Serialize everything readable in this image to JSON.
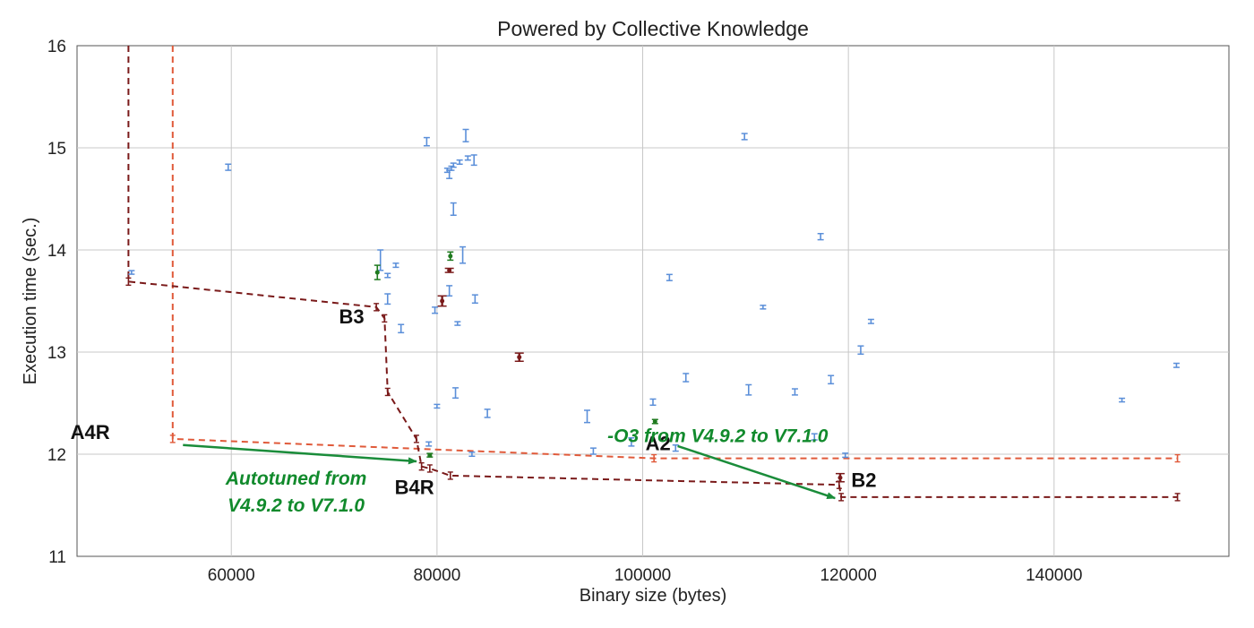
{
  "chart_data": {
    "type": "scatter",
    "title": "Powered by Collective Knowledge",
    "xlabel": "Binary size (bytes)",
    "ylabel": "Execution time (sec.)",
    "xlim": [
      45000,
      157000
    ],
    "ylim": [
      11,
      16
    ],
    "xticks": [
      60000,
      80000,
      100000,
      120000,
      140000
    ],
    "yticks": [
      11,
      12,
      13,
      14,
      15,
      16
    ],
    "grid": true,
    "colors": {
      "blue": "#5b8fd9",
      "darkred": "#7a1a1a",
      "green": "#1f7a1f",
      "orange": "#e05a3a",
      "arrow": "#1a8c3a",
      "note": "#118a2c"
    },
    "series": [
      {
        "role": "scatter-blue",
        "color": "#5b8fd9",
        "points": [
          [
            50300,
            13.78,
            0.01
          ],
          [
            59700,
            14.81,
            0.03
          ],
          [
            74500,
            13.9,
            0.1
          ],
          [
            75200,
            13.52,
            0.05
          ],
          [
            75200,
            13.75,
            0.02
          ],
          [
            76000,
            13.85,
            0.02
          ],
          [
            76500,
            13.23,
            0.04
          ],
          [
            79000,
            15.06,
            0.04
          ],
          [
            79200,
            12.1,
            0.02
          ],
          [
            79800,
            13.41,
            0.03
          ],
          [
            80000,
            12.47,
            0.01
          ],
          [
            81000,
            14.78,
            0.02
          ],
          [
            81200,
            14.74,
            0.04
          ],
          [
            81400,
            14.8,
            0.02
          ],
          [
            81600,
            14.83,
            0.02
          ],
          [
            81600,
            14.4,
            0.06
          ],
          [
            81200,
            13.6,
            0.05
          ],
          [
            81800,
            12.6,
            0.05
          ],
          [
            82000,
            13.28,
            0.01
          ],
          [
            82200,
            14.86,
            0.02
          ],
          [
            82500,
            13.95,
            0.08
          ],
          [
            82800,
            15.12,
            0.06
          ],
          [
            83000,
            14.9,
            0.02
          ],
          [
            83400,
            12.0,
            0.02
          ],
          [
            83600,
            14.88,
            0.05
          ],
          [
            83700,
            13.52,
            0.04
          ],
          [
            84900,
            12.4,
            0.04
          ],
          [
            94600,
            12.37,
            0.06
          ],
          [
            95200,
            12.03,
            0.03
          ],
          [
            98900,
            12.12,
            0.04
          ],
          [
            101000,
            12.51,
            0.03
          ],
          [
            102600,
            13.73,
            0.03
          ],
          [
            103200,
            12.06,
            0.03
          ],
          [
            104200,
            12.75,
            0.04
          ],
          [
            109900,
            15.11,
            0.03
          ],
          [
            110300,
            12.63,
            0.05
          ],
          [
            111700,
            13.44,
            0.01
          ],
          [
            114800,
            12.61,
            0.03
          ],
          [
            116700,
            12.17,
            0.03
          ],
          [
            117300,
            14.13,
            0.03
          ],
          [
            118300,
            12.73,
            0.04
          ],
          [
            119700,
            11.99,
            0.02
          ],
          [
            121200,
            13.02,
            0.04
          ],
          [
            122200,
            13.3,
            0.02
          ],
          [
            146600,
            12.53,
            0.01
          ],
          [
            151900,
            12.87,
            0.02
          ]
        ]
      },
      {
        "role": "scatter-darkred",
        "color": "#7a1a1a",
        "points": [
          [
            80500,
            13.5,
            0.05
          ],
          [
            81200,
            13.8,
            0.02
          ],
          [
            88000,
            12.95,
            0.04
          ],
          [
            119200,
            11.77,
            0.04
          ]
        ]
      },
      {
        "role": "scatter-green",
        "color": "#1f7a1f",
        "points": [
          [
            74200,
            13.78,
            0.07
          ],
          [
            79300,
            11.99,
            0.01
          ],
          [
            81300,
            13.94,
            0.04
          ],
          [
            101200,
            12.32,
            0.02
          ]
        ]
      },
      {
        "role": "pareto-orange",
        "color": "#e05a3a",
        "x": [
          54300,
          54300,
          101100,
          152000
        ],
        "y": [
          16,
          12.15,
          11.96,
          11.96
        ]
      },
      {
        "role": "pareto-darkred",
        "color": "#7a1a1a",
        "x": [
          50000,
          50000,
          74100,
          74900,
          75200,
          78000,
          78500,
          79300,
          81300,
          119100,
          119300,
          152000
        ],
        "y": [
          16,
          13.69,
          13.44,
          13.33,
          12.61,
          12.15,
          11.88,
          11.86,
          11.79,
          11.7,
          11.58,
          11.58
        ]
      }
    ],
    "annotations": {
      "a4r": {
        "text": "A4R",
        "x": 48200,
        "y": 12.15
      },
      "b3": {
        "text": "B3",
        "x": 71700,
        "y": 13.28
      },
      "b4r": {
        "text": "B4R",
        "x": 77800,
        "y": 11.61
      },
      "a2": {
        "text": "A2",
        "x": 101500,
        "y": 12.04
      },
      "b2": {
        "text": "B2",
        "x": 121500,
        "y": 11.68
      },
      "note_o3": {
        "text": "-O3 from V4.9.2 to V7.1.0",
        "x": 107300,
        "y": 12.12
      },
      "note_auto_1": {
        "text": "Autotuned from",
        "x": 66300,
        "y": 11.7
      },
      "note_auto_2": {
        "text": "V4.9.2 to V7.1.0",
        "x": 66300,
        "y": 11.44
      }
    },
    "arrows": [
      {
        "from": [
          55300,
          12.09
        ],
        "to": [
          78000,
          11.93
        ]
      },
      {
        "from": [
          103400,
          12.08
        ],
        "to": [
          118700,
          11.57
        ]
      }
    ]
  }
}
